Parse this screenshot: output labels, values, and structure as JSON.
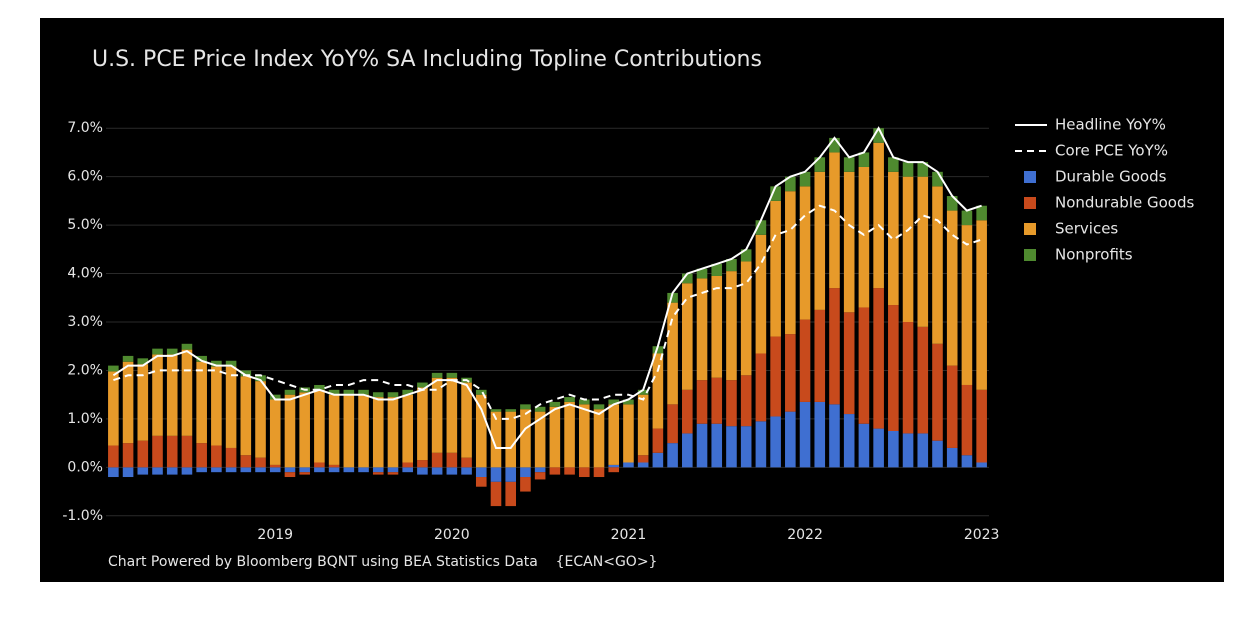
{
  "chart_data": {
    "type": "bar",
    "title": "U.S. PCE Price Index YoY% SA Including Topline Contributions",
    "source": "Chart Powered by Bloomberg BQNT using BEA Statistics Data    {ECAN<GO>}",
    "stacked": true,
    "grid": true,
    "legend": "right",
    "categories": [
      null,
      null,
      null,
      null,
      null,
      null,
      null,
      null,
      null,
      null,
      null,
      "2019",
      null,
      null,
      null,
      null,
      null,
      null,
      null,
      null,
      null,
      null,
      null,
      "2020",
      null,
      null,
      null,
      null,
      null,
      null,
      null,
      null,
      null,
      null,
      null,
      "2021",
      null,
      null,
      null,
      null,
      null,
      null,
      null,
      null,
      null,
      null,
      null,
      "2022",
      null,
      null,
      null,
      null,
      null,
      null,
      null,
      null,
      null,
      null,
      null,
      "2023"
    ],
    "ylim": [
      -1.5,
      7.5
    ],
    "yticks": [
      {
        "value": -1,
        "label": "-1.0%"
      },
      {
        "value": 0,
        "label": "0.0%"
      },
      {
        "value": 1,
        "label": "1.0%"
      },
      {
        "value": 2,
        "label": "2.0%"
      },
      {
        "value": 3,
        "label": "3.0%"
      },
      {
        "value": 4,
        "label": "4.0%"
      },
      {
        "value": 5,
        "label": "5.0%"
      },
      {
        "value": 6,
        "label": "6.0%"
      },
      {
        "value": 7,
        "label": "7.0%"
      }
    ],
    "series": [
      {
        "name": "Headline YoY%",
        "type": "line",
        "dash": false,
        "color": "#ffffff",
        "values": [
          1.9,
          2.1,
          2.1,
          2.3,
          2.3,
          2.4,
          2.2,
          2.1,
          2.1,
          1.9,
          1.8,
          1.4,
          1.4,
          1.5,
          1.6,
          1.5,
          1.5,
          1.5,
          1.4,
          1.4,
          1.5,
          1.6,
          1.8,
          1.8,
          1.7,
          1.2,
          0.4,
          0.4,
          0.8,
          1.0,
          1.2,
          1.3,
          1.2,
          1.1,
          1.3,
          1.4,
          1.6,
          2.5,
          3.6,
          4.0,
          4.1,
          4.2,
          4.3,
          4.5,
          5.1,
          5.8,
          6.0,
          6.1,
          6.4,
          6.8,
          6.4,
          6.5,
          7.0,
          6.4,
          6.3,
          6.3,
          6.1,
          5.6,
          5.3,
          5.4
        ]
      },
      {
        "name": "Core PCE YoY%",
        "type": "line",
        "dash": true,
        "color": "#ffffff",
        "values": [
          1.8,
          1.9,
          1.9,
          2.0,
          2.0,
          2.0,
          2.0,
          2.0,
          1.9,
          1.9,
          1.9,
          1.8,
          1.7,
          1.6,
          1.6,
          1.7,
          1.7,
          1.8,
          1.8,
          1.7,
          1.7,
          1.6,
          1.6,
          1.8,
          1.8,
          1.6,
          1.0,
          1.0,
          1.1,
          1.3,
          1.4,
          1.5,
          1.4,
          1.4,
          1.5,
          1.5,
          1.4,
          2.0,
          3.1,
          3.5,
          3.6,
          3.7,
          3.7,
          3.8,
          4.2,
          4.8,
          4.9,
          5.2,
          5.4,
          5.3,
          5.0,
          4.8,
          5.0,
          4.7,
          4.9,
          5.2,
          5.1,
          4.8,
          4.6,
          4.7
        ]
      },
      {
        "name": "Durable Goods",
        "type": "bar",
        "color": "#3f6fd1",
        "values": [
          -0.2,
          -0.2,
          -0.15,
          -0.15,
          -0.15,
          -0.15,
          -0.1,
          -0.1,
          -0.1,
          -0.1,
          -0.1,
          -0.1,
          -0.1,
          -0.1,
          -0.1,
          -0.1,
          -0.1,
          -0.1,
          -0.1,
          -0.1,
          -0.1,
          -0.15,
          -0.15,
          -0.15,
          -0.15,
          -0.2,
          -0.3,
          -0.3,
          -0.2,
          -0.1,
          0.0,
          0.0,
          0.0,
          0.0,
          0.05,
          0.1,
          0.1,
          0.3,
          0.5,
          0.7,
          0.9,
          0.9,
          0.85,
          0.85,
          0.95,
          1.05,
          1.15,
          1.35,
          1.35,
          1.3,
          1.1,
          0.9,
          0.8,
          0.75,
          0.7,
          0.7,
          0.55,
          0.4,
          0.25,
          0.1
        ]
      },
      {
        "name": "Nondurable Goods",
        "type": "bar",
        "color": "#c84a1c",
        "values": [
          0.45,
          0.5,
          0.55,
          0.65,
          0.65,
          0.65,
          0.5,
          0.45,
          0.4,
          0.25,
          0.2,
          0.05,
          -0.1,
          -0.05,
          0.1,
          0.05,
          0.0,
          0.0,
          -0.05,
          -0.05,
          0.1,
          0.15,
          0.3,
          0.3,
          0.2,
          -0.2,
          -0.5,
          -0.5,
          -0.3,
          -0.15,
          -0.15,
          -0.15,
          -0.2,
          -0.2,
          -0.1,
          0.0,
          0.15,
          0.5,
          0.8,
          0.9,
          0.9,
          0.95,
          0.95,
          1.05,
          1.4,
          1.65,
          1.6,
          1.7,
          1.9,
          2.4,
          2.1,
          2.4,
          2.9,
          2.6,
          2.3,
          2.2,
          2.0,
          1.7,
          1.45,
          1.5
        ]
      },
      {
        "name": "Services",
        "type": "bar",
        "color": "#e79a2a",
        "values": [
          1.53,
          1.68,
          1.58,
          1.68,
          1.68,
          1.78,
          1.68,
          1.63,
          1.68,
          1.63,
          1.58,
          1.35,
          1.5,
          1.55,
          1.5,
          1.45,
          1.5,
          1.5,
          1.45,
          1.45,
          1.4,
          1.5,
          1.55,
          1.55,
          1.55,
          1.5,
          1.15,
          1.15,
          1.2,
          1.15,
          1.25,
          1.35,
          1.3,
          1.2,
          1.25,
          1.2,
          1.25,
          1.55,
          2.1,
          2.2,
          2.1,
          2.1,
          2.25,
          2.35,
          2.45,
          2.8,
          2.95,
          2.75,
          2.85,
          2.8,
          2.9,
          2.9,
          3.0,
          2.75,
          3.0,
          3.1,
          3.25,
          3.2,
          3.3,
          3.5
        ]
      },
      {
        "name": "Nonprofits",
        "type": "bar",
        "color": "#4f8a2f",
        "values": [
          0.12,
          0.12,
          0.12,
          0.12,
          0.12,
          0.12,
          0.12,
          0.12,
          0.12,
          0.12,
          0.12,
          0.1,
          0.1,
          0.1,
          0.1,
          0.1,
          0.1,
          0.1,
          0.1,
          0.1,
          0.1,
          0.1,
          0.1,
          0.1,
          0.1,
          0.1,
          0.05,
          0.05,
          0.1,
          0.1,
          0.1,
          0.1,
          0.1,
          0.1,
          0.1,
          0.1,
          0.1,
          0.15,
          0.2,
          0.2,
          0.2,
          0.25,
          0.25,
          0.25,
          0.3,
          0.3,
          0.3,
          0.3,
          0.3,
          0.3,
          0.3,
          0.3,
          0.3,
          0.3,
          0.3,
          0.3,
          0.3,
          0.3,
          0.3,
          0.3
        ]
      }
    ]
  }
}
